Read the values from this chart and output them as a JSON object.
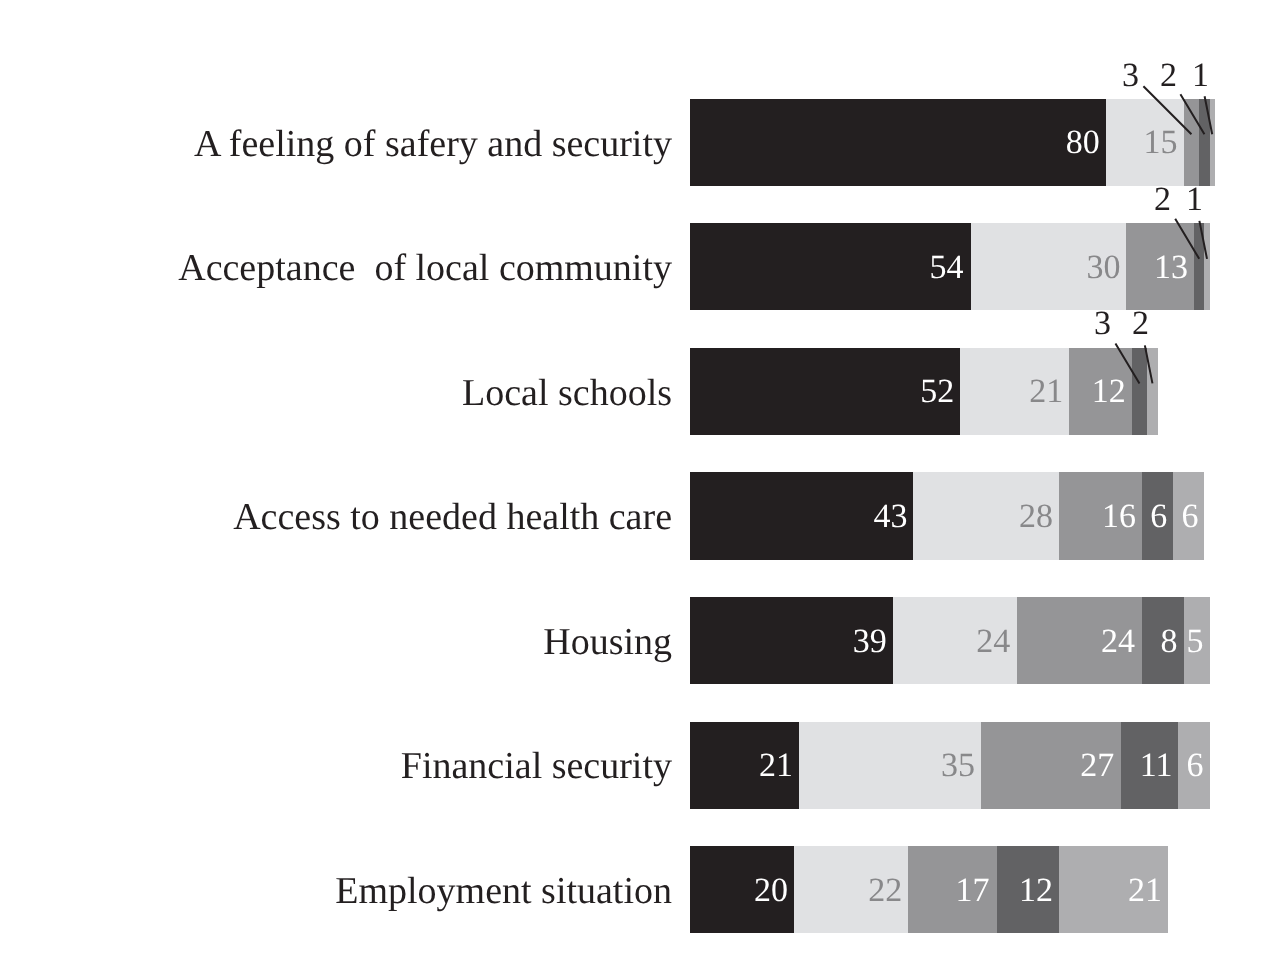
{
  "chart_data": {
    "type": "bar",
    "orientation": "horizontal",
    "stacked": true,
    "data_labels": true,
    "categories": [
      "A feeling of safery and security",
      "Acceptance  of local community",
      "Local schools",
      "Access to needed health care",
      "Housing",
      "Financial security",
      "Employment situation"
    ],
    "xlim": [
      0,
      102
    ],
    "tick_labels": "y",
    "series": [
      {
        "color": "#231f20",
        "values": [
          80,
          54,
          52,
          43,
          39,
          21,
          20
        ]
      },
      {
        "color": "#e0e1e3",
        "values": [
          15,
          30,
          21,
          28,
          24,
          35,
          22
        ]
      },
      {
        "color": "#959597",
        "values": [
          3,
          13,
          12,
          16,
          24,
          27,
          17
        ]
      },
      {
        "color": "#626264",
        "values": [
          2,
          2,
          3,
          6,
          8,
          11,
          12
        ]
      },
      {
        "color": "#aeaeb0",
        "values": [
          1,
          1,
          2,
          6,
          5,
          6,
          21
        ]
      }
    ]
  }
}
